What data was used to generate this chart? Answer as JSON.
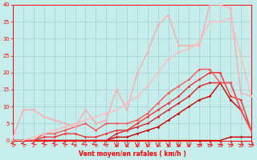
{
  "title": "",
  "xlabel": "Vent moyen/en rafales ( km/h )",
  "ylabel": "",
  "xlim": [
    0,
    23
  ],
  "ylim": [
    0,
    40
  ],
  "yticks": [
    0,
    5,
    10,
    15,
    20,
    25,
    30,
    35,
    40
  ],
  "xticks": [
    0,
    1,
    2,
    3,
    4,
    5,
    6,
    7,
    8,
    9,
    10,
    11,
    12,
    13,
    14,
    15,
    16,
    17,
    18,
    19,
    20,
    21,
    22,
    23
  ],
  "background_color": "#c6ecec",
  "grid_color": "#9fd4d4",
  "lines": [
    {
      "x": [
        0,
        1,
        2,
        3,
        4,
        5,
        6,
        7,
        8,
        9,
        10,
        11,
        12,
        13,
        14,
        15,
        16,
        17,
        18,
        19,
        20,
        21,
        22,
        23
      ],
      "y": [
        0,
        0,
        0,
        0,
        0,
        0,
        0,
        0,
        0,
        0,
        0,
        0,
        0,
        0,
        0,
        0,
        0,
        0,
        0,
        0,
        0,
        1,
        1,
        1
      ],
      "color": "#cc0000",
      "lw": 1.0,
      "marker": "D",
      "ms": 1.8
    },
    {
      "x": [
        0,
        1,
        2,
        3,
        4,
        5,
        6,
        7,
        8,
        9,
        10,
        11,
        12,
        13,
        14,
        15,
        16,
        17,
        18,
        19,
        20,
        21,
        22,
        23
      ],
      "y": [
        0,
        0,
        0,
        0,
        0,
        0,
        0,
        0,
        0,
        0,
        1,
        1,
        2,
        3,
        4,
        6,
        8,
        10,
        12,
        13,
        17,
        12,
        9,
        3
      ],
      "color": "#cc0000",
      "lw": 1.0,
      "marker": "D",
      "ms": 1.8
    },
    {
      "x": [
        0,
        1,
        2,
        3,
        4,
        5,
        6,
        7,
        8,
        9,
        10,
        11,
        12,
        13,
        14,
        15,
        16,
        17,
        18,
        19,
        20,
        21,
        22,
        23
      ],
      "y": [
        0,
        0,
        0,
        0,
        0,
        0,
        0,
        0,
        0,
        0,
        2,
        3,
        4,
        5,
        7,
        9,
        11,
        13,
        16,
        17,
        17,
        17,
        9,
        3
      ],
      "color": "#dd2222",
      "lw": 1.0,
      "marker": "D",
      "ms": 1.8
    },
    {
      "x": [
        0,
        1,
        2,
        3,
        4,
        5,
        6,
        7,
        8,
        9,
        10,
        11,
        12,
        13,
        14,
        15,
        16,
        17,
        18,
        19,
        20,
        21,
        22,
        23
      ],
      "y": [
        0,
        0,
        0,
        1,
        1,
        2,
        2,
        1,
        1,
        2,
        3,
        3,
        5,
        7,
        9,
        11,
        13,
        16,
        18,
        20,
        20,
        13,
        12,
        3
      ],
      "color": "#ee3333",
      "lw": 1.0,
      "marker": "D",
      "ms": 1.8
    },
    {
      "x": [
        0,
        1,
        2,
        3,
        4,
        5,
        6,
        7,
        8,
        9,
        10,
        11,
        12,
        13,
        14,
        15,
        16,
        17,
        18,
        19,
        20,
        21,
        22,
        23
      ],
      "y": [
        0,
        0,
        0,
        2,
        2,
        3,
        4,
        5,
        3,
        5,
        5,
        5,
        6,
        8,
        11,
        14,
        16,
        18,
        21,
        21,
        17,
        17,
        9,
        3
      ],
      "color": "#ff5555",
      "lw": 1.0,
      "marker": "D",
      "ms": 1.8
    },
    {
      "x": [
        0,
        1,
        2,
        3,
        4,
        5,
        6,
        7,
        8,
        9,
        10,
        11,
        12,
        13,
        14,
        15,
        16,
        17,
        18,
        19,
        20,
        21,
        22,
        23
      ],
      "y": [
        1,
        9,
        9,
        7,
        6,
        5,
        4,
        9,
        5,
        6,
        15,
        9,
        20,
        26,
        34,
        37,
        28,
        28,
        28,
        40,
        40,
        39,
        14,
        13
      ],
      "color": "#ffaaaa",
      "lw": 1.0,
      "marker": "D",
      "ms": 1.8
    },
    {
      "x": [
        0,
        1,
        2,
        3,
        4,
        5,
        6,
        7,
        8,
        9,
        10,
        11,
        12,
        13,
        14,
        15,
        16,
        17,
        18,
        19,
        20,
        21,
        22,
        23
      ],
      "y": [
        0,
        0,
        1,
        2,
        3,
        4,
        5,
        6,
        7,
        8,
        9,
        11,
        13,
        16,
        20,
        24,
        26,
        27,
        29,
        35,
        35,
        36,
        25,
        13
      ],
      "color": "#ffbbbb",
      "lw": 1.0,
      "marker": "D",
      "ms": 1.8
    }
  ],
  "arrow_angles": [
    225,
    225,
    225,
    225,
    225,
    225,
    180,
    180,
    180,
    135,
    90,
    90,
    90,
    90,
    90,
    90,
    90,
    90,
    45,
    45,
    45,
    45,
    45,
    45
  ]
}
